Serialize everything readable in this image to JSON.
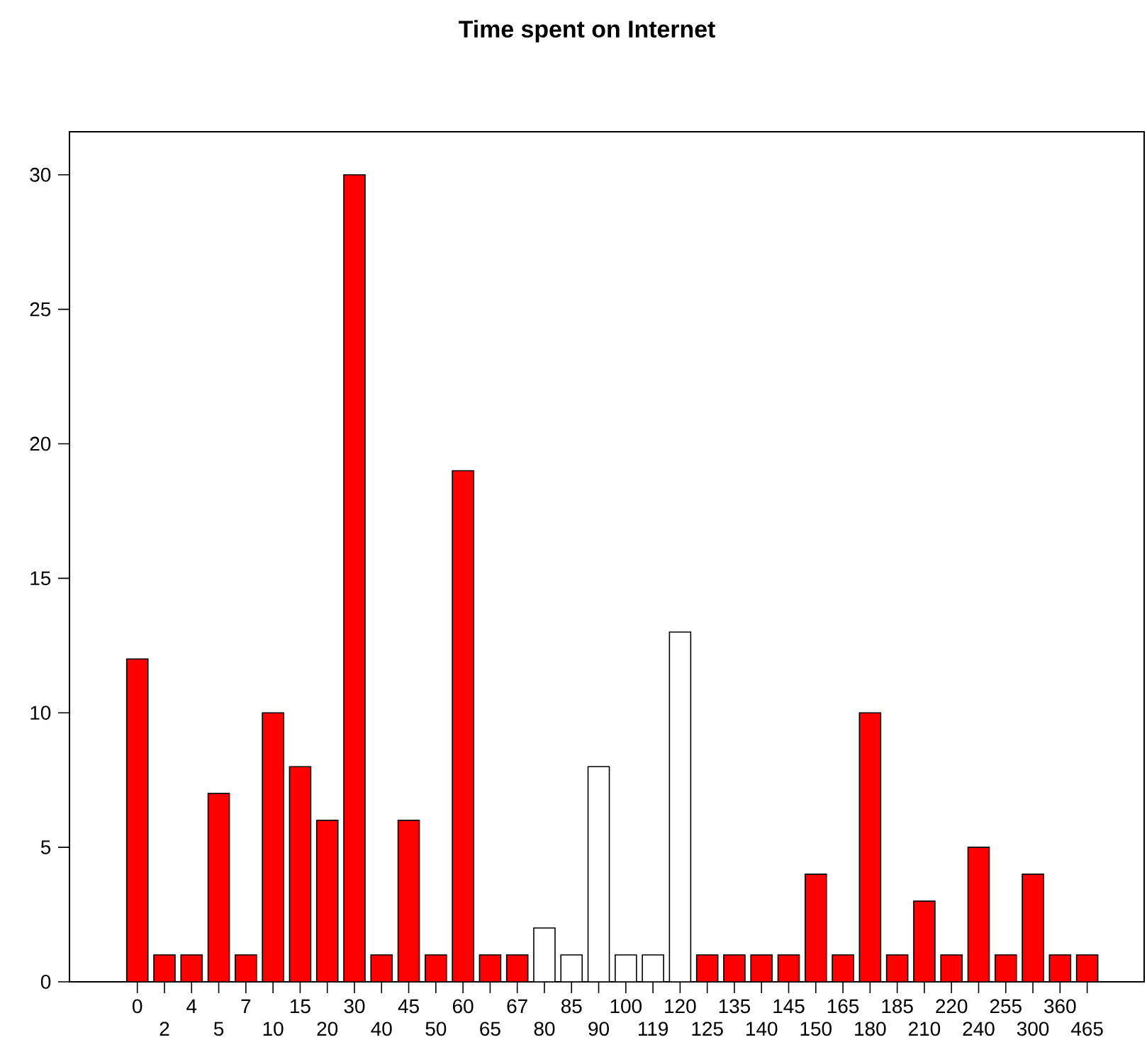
{
  "chart_data": {
    "type": "bar",
    "title": "Time spent on Internet",
    "categories": [
      "0",
      "2",
      "4",
      "5",
      "7",
      "10",
      "15",
      "20",
      "30",
      "40",
      "45",
      "50",
      "60",
      "65",
      "67",
      "80",
      "85",
      "90",
      "100",
      "119",
      "120",
      "125",
      "135",
      "140",
      "145",
      "150",
      "165",
      "180",
      "185",
      "210",
      "220",
      "240",
      "255",
      "300",
      "360",
      "465"
    ],
    "values": [
      12,
      1,
      1,
      7,
      1,
      10,
      8,
      6,
      30,
      1,
      6,
      1,
      19,
      1,
      1,
      2,
      1,
      8,
      1,
      1,
      13,
      1,
      1,
      1,
      1,
      4,
      1,
      10,
      1,
      3,
      1,
      5,
      1,
      4,
      1,
      1
    ],
    "colors": [
      "#ff0000",
      "#ff0000",
      "#ff0000",
      "#ff0000",
      "#ff0000",
      "#ff0000",
      "#ff0000",
      "#ff0000",
      "#ff0000",
      "#ff0000",
      "#ff0000",
      "#ff0000",
      "#ff0000",
      "#ff0000",
      "#ff0000",
      "#ffffff",
      "#ffffff",
      "#ffffff",
      "#ffffff",
      "#ffffff",
      "#ffffff",
      "#ff0000",
      "#ff0000",
      "#ff0000",
      "#ff0000",
      "#ff0000",
      "#ff0000",
      "#ff0000",
      "#ff0000",
      "#ff0000",
      "#ff0000",
      "#ff0000",
      "#ff0000",
      "#ff0000",
      "#ff0000",
      "#ff0000"
    ],
    "ylim": [
      0,
      31.6
    ],
    "yticks": [
      0,
      5,
      10,
      15,
      20,
      25,
      30
    ],
    "grid": false
  }
}
